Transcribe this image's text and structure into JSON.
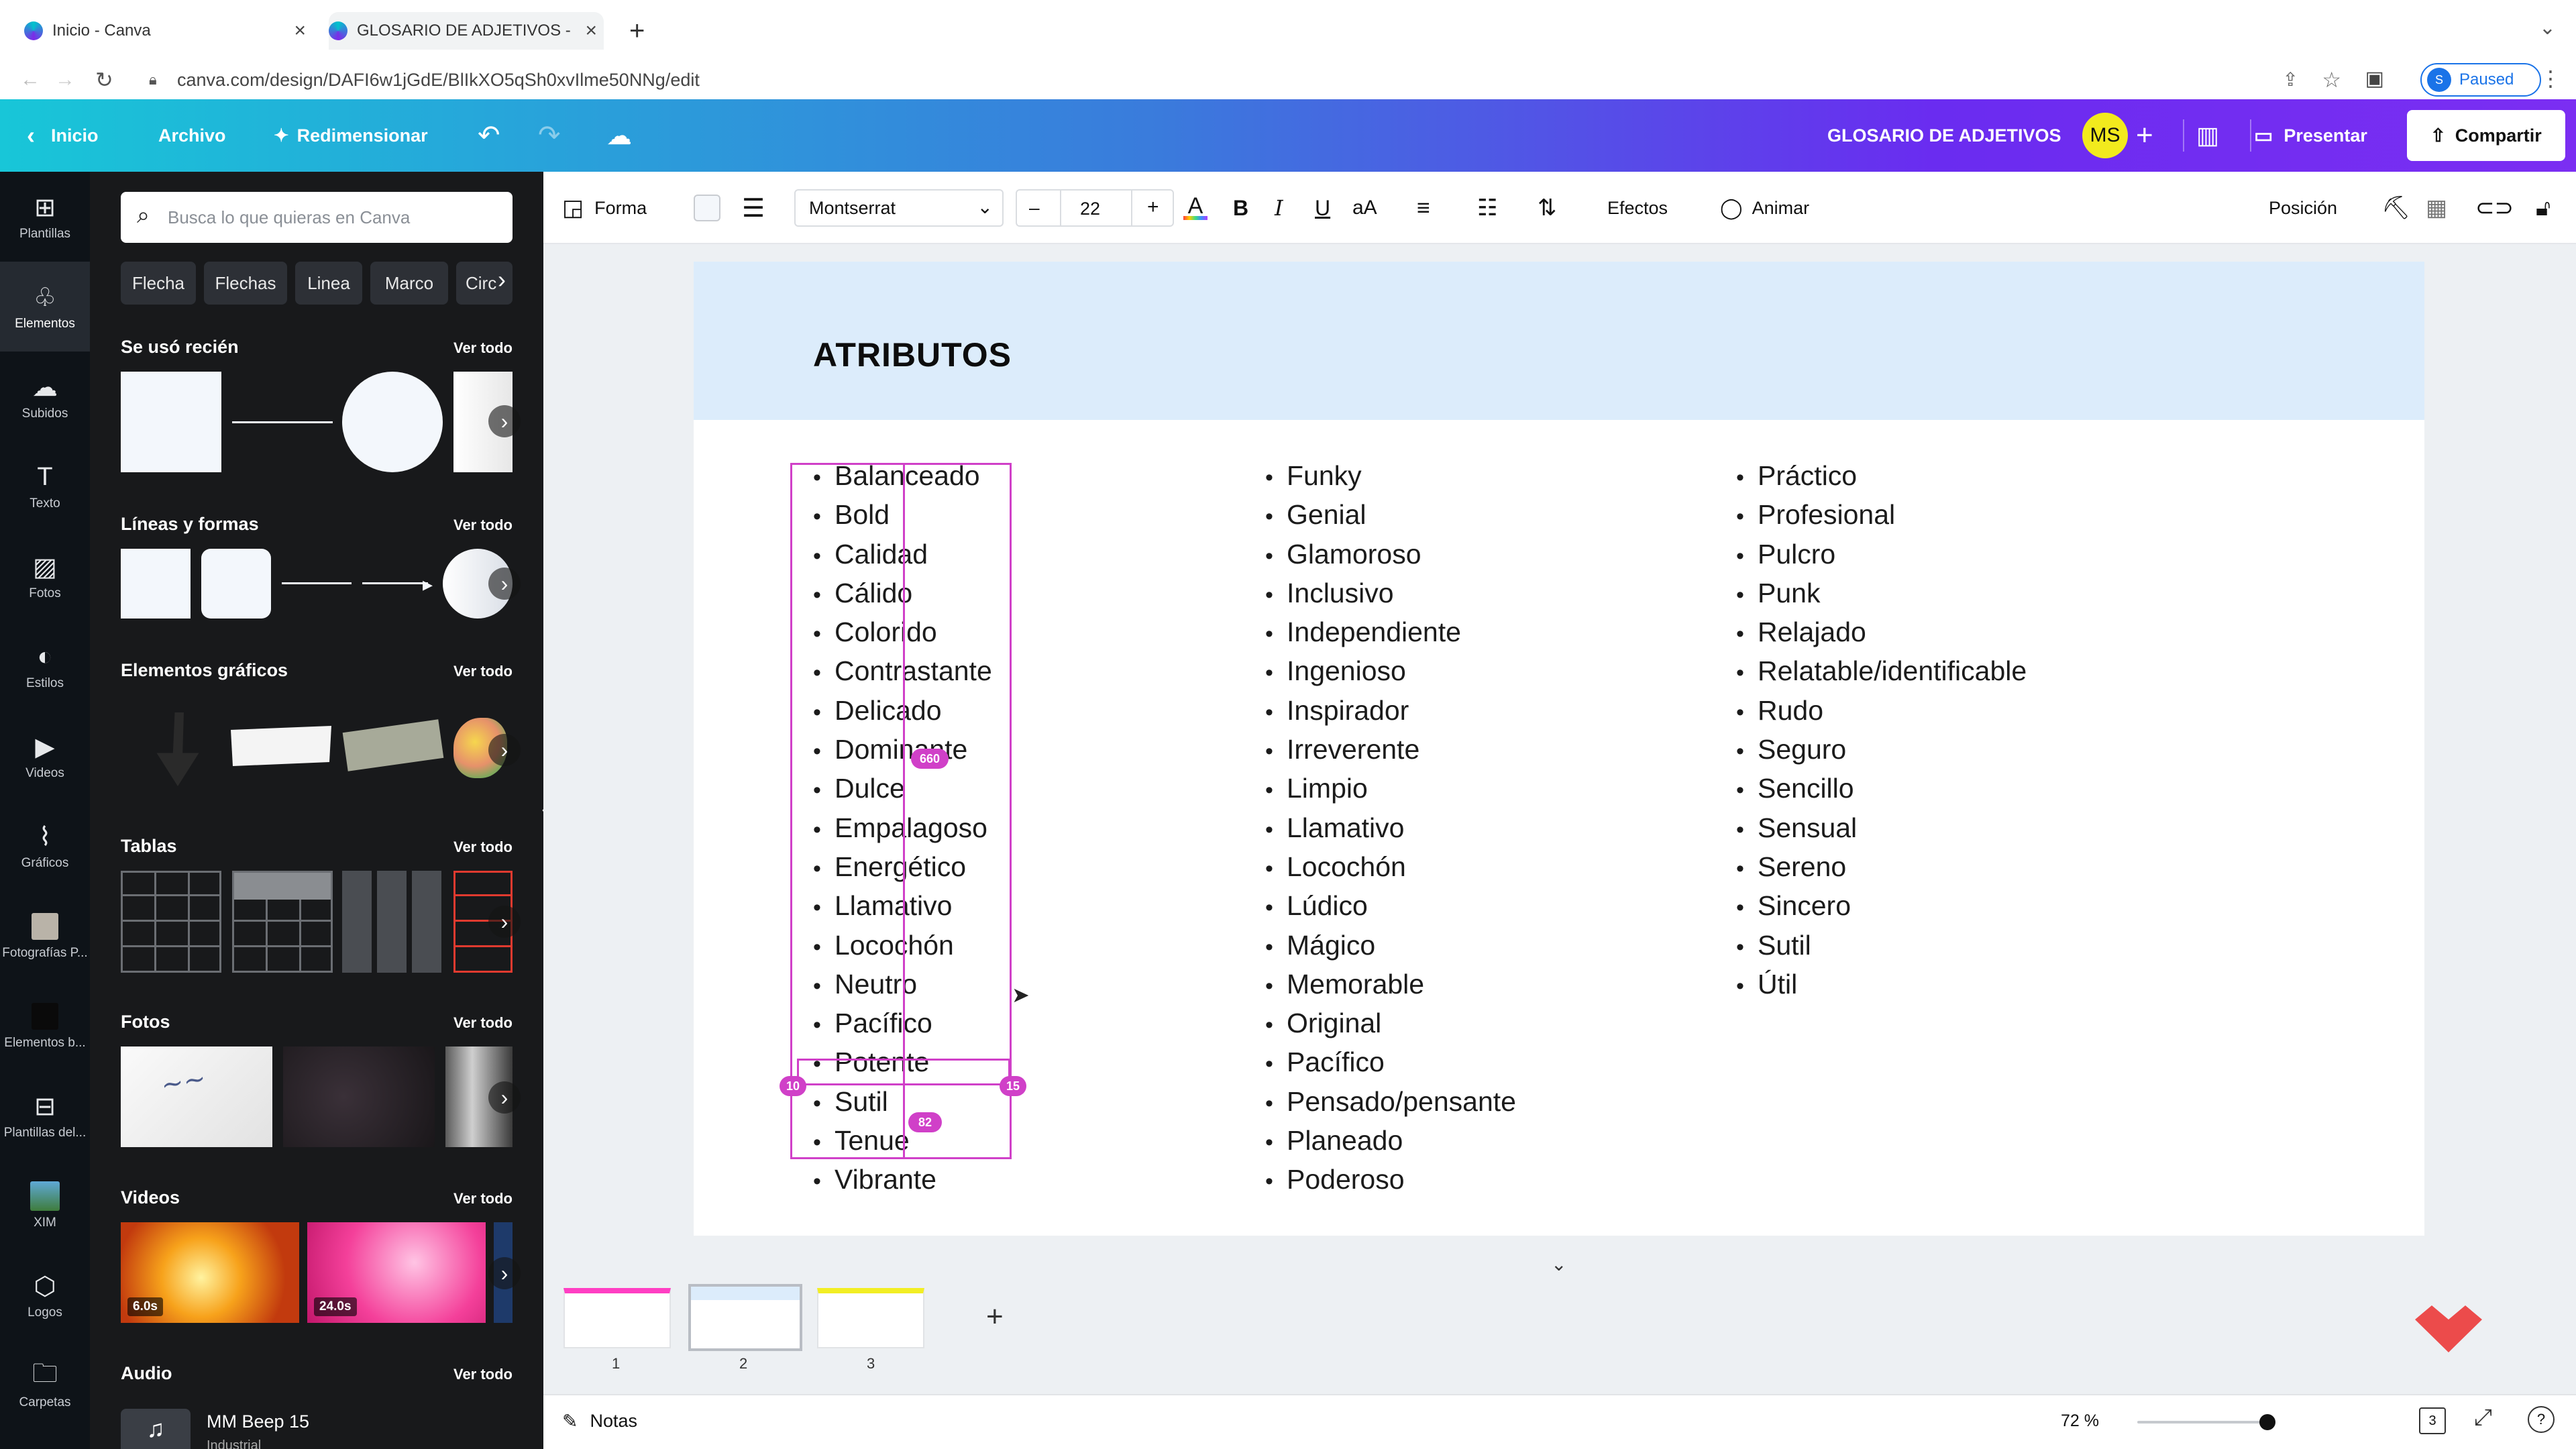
{
  "browser": {
    "tabs": [
      {
        "title": "Inicio - Canva"
      },
      {
        "title": "GLOSARIO DE ADJETIVOS - "
      }
    ],
    "new_tab": "+",
    "url": "canva.com/design/DAFI6w1jGdE/BlIkXO5qSh0xvIlme50NNg/edit",
    "profile": {
      "initial": "S",
      "status": "Paused"
    }
  },
  "topbar": {
    "home": "Inicio",
    "file": "Archivo",
    "resize": "Redimensionar",
    "doc_title": "GLOSARIO DE ADJETIVOS",
    "avatar": "MS",
    "present": "Presentar",
    "share": "Compartir",
    "colors": {
      "avatar_bg": "#f2ea1d"
    }
  },
  "rail": [
    {
      "label": "Plantillas",
      "icon": "templates-icon"
    },
    {
      "label": "Elementos",
      "icon": "elements-icon"
    },
    {
      "label": "Subidos",
      "icon": "upload-icon"
    },
    {
      "label": "Texto",
      "icon": "text-icon"
    },
    {
      "label": "Fotos",
      "icon": "photos-icon"
    },
    {
      "label": "Estilos",
      "icon": "styles-icon"
    },
    {
      "label": "Videos",
      "icon": "video-icon"
    },
    {
      "label": "Gráficos",
      "icon": "charts-icon"
    },
    {
      "label": "Fotografías P...",
      "icon": "folder-photo-icon"
    },
    {
      "label": "Elementos b...",
      "icon": "brand-elements-icon"
    },
    {
      "label": "Plantillas del...",
      "icon": "brand-templates-icon"
    },
    {
      "label": "XIM",
      "icon": "xim-icon"
    },
    {
      "label": "Logos",
      "icon": "logos-icon"
    },
    {
      "label": "Carpetas",
      "icon": "folders-icon"
    }
  ],
  "panel": {
    "search_placeholder": "Busca lo que quieras en Canva",
    "chips": [
      "Flecha",
      "Flechas",
      "Linea",
      "Marco",
      "Circ"
    ],
    "see_all": "Ver todo",
    "sections": {
      "recent": "Se usó recién",
      "lines": "Líneas y formas",
      "graphics": "Elementos gráficos",
      "tables": "Tablas",
      "photos": "Fotos",
      "videos": "Videos",
      "audio": "Audio"
    },
    "videos": [
      {
        "duration": "6.0s"
      },
      {
        "duration": "24.0s"
      }
    ],
    "audio": {
      "title": "MM Beep 15",
      "subtitle": "Industrial"
    }
  },
  "context_toolbar": {
    "shape": "Forma",
    "font": "Montserrat",
    "minus": "–",
    "size": "22",
    "plus": "+",
    "bold": "B",
    "italic": "I",
    "underline": "U",
    "case": "aA",
    "effects": "Efectos",
    "animate": "Animar",
    "position": "Posición"
  },
  "page": {
    "heading": "ATRIBUTOS",
    "col1": [
      "Balanceado",
      "Bold",
      "Calidad",
      "Cálido",
      "Colorido",
      "Contrastante",
      "Delicado",
      "Dominante",
      "Dulce",
      "Empalagoso",
      "Energético",
      "Llamativo",
      "Locochón",
      "Neutro",
      "Pacífico",
      "Potente",
      "Sutil",
      "Tenue",
      "Vibrante"
    ],
    "col2": [
      "Funky",
      "Genial",
      "Glamoroso",
      "Inclusivo",
      "Independiente",
      "Ingenioso",
      "Inspirador",
      "Irreverente",
      "Limpio",
      "Llamativo",
      "Locochón",
      "Lúdico",
      "Mágico",
      "Memorable",
      "Original",
      "Pacífico",
      "Pensado/pensante",
      "Planeado",
      "Poderoso"
    ],
    "col3": [
      "Práctico",
      "Profesional",
      "Pulcro",
      "Punk",
      "Relajado",
      "Relatable/identificable",
      "Rudo",
      "Seguro",
      "Sencillo",
      "Sensual",
      "Sereno",
      "Sincero",
      "Sutil",
      "Útil"
    ],
    "guides": {
      "a": "660",
      "b": "82",
      "c": "10",
      "d": "15"
    }
  },
  "pages": [
    {
      "num": "1"
    },
    {
      "num": "2"
    },
    {
      "num": "3"
    }
  ],
  "status": {
    "notes": "Notas",
    "zoom": "72 %",
    "page_count": "3"
  }
}
